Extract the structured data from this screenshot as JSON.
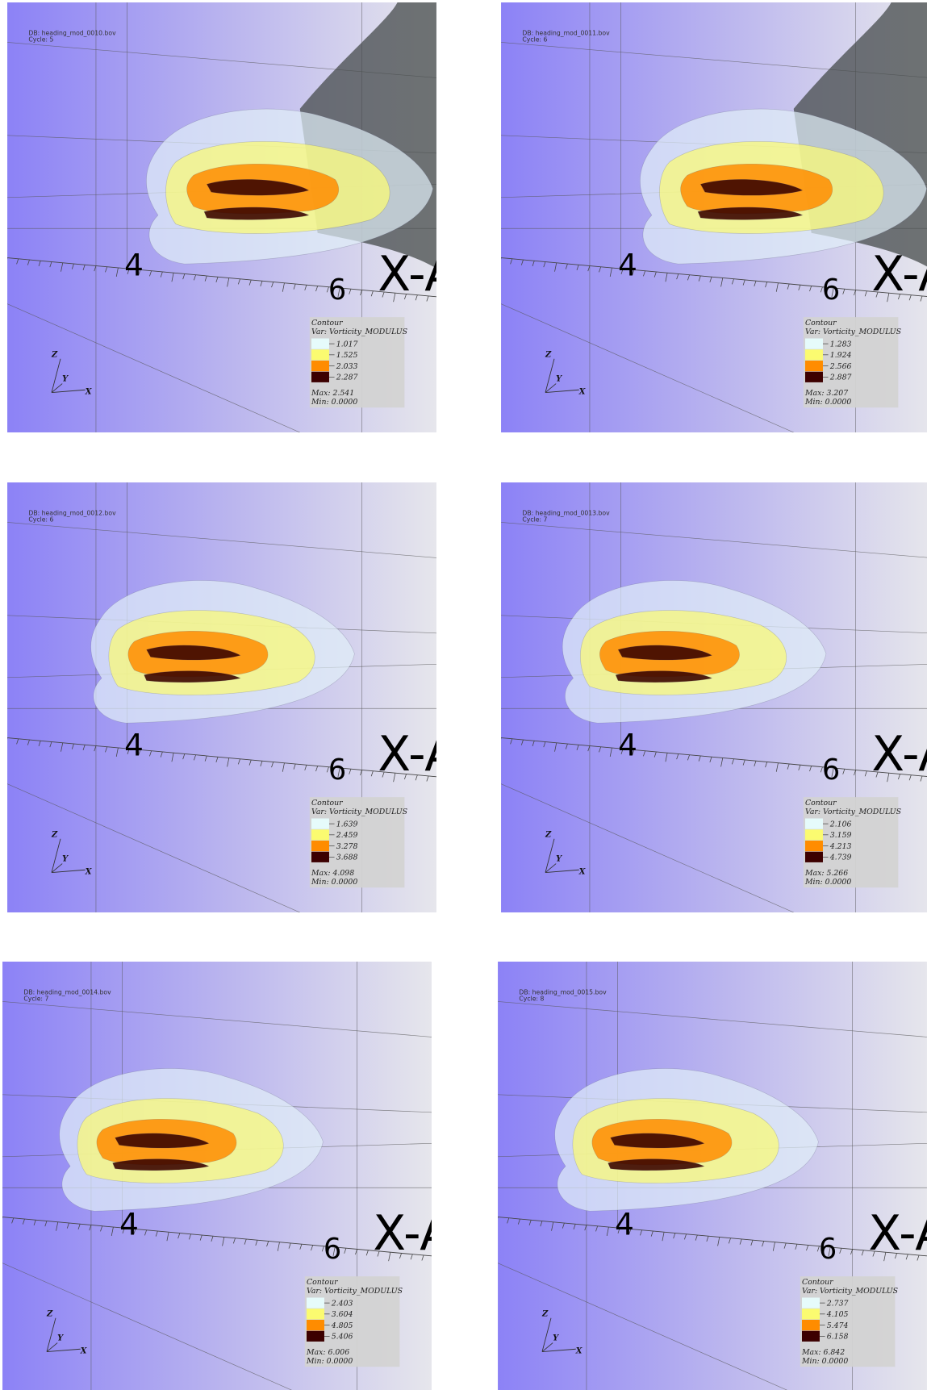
{
  "panels": [
    {
      "db": "DB: heading_mod_0010.bov",
      "cycle": "Cycle: 5",
      "axis": {
        "tick_a": "4",
        "tick_b": "6",
        "title": "X-Axis"
      },
      "triad": [
        "Z",
        "Y",
        "X"
      ],
      "legend": {
        "title": "Contour",
        "var": "Var: Vorticity_MODULUS",
        "levels": [
          "1.017",
          "1.525",
          "2.033",
          "2.287"
        ],
        "max": "Max:  2.541",
        "min": "Min:  0.0000"
      }
    },
    {
      "db": "DB: heading_mod_0011.bov",
      "cycle": "Cycle: 6",
      "axis": {
        "tick_a": "4",
        "tick_b": "6",
        "title": "X-Axis"
      },
      "triad": [
        "Z",
        "Y",
        "X"
      ],
      "legend": {
        "title": "Contour",
        "var": "Var: Vorticity_MODULUS",
        "levels": [
          "1.283",
          "1.924",
          "2.566",
          "2.887"
        ],
        "max": "Max:  3.207",
        "min": "Min:  0.0000"
      }
    },
    {
      "db": "DB: heading_mod_0012.bov",
      "cycle": "Cycle: 6",
      "axis": {
        "tick_a": "4",
        "tick_b": "6",
        "title": "X-Axis"
      },
      "triad": [
        "Z",
        "Y",
        "X"
      ],
      "legend": {
        "title": "Contour",
        "var": "Var: Vorticity_MODULUS",
        "levels": [
          "1.639",
          "2.459",
          "3.278",
          "3.688"
        ],
        "max": "Max:  4.098",
        "min": "Min:  0.0000"
      }
    },
    {
      "db": "DB: heading_mod_0013.bov",
      "cycle": "Cycle: 7",
      "axis": {
        "tick_a": "4",
        "tick_b": "6",
        "title": "X-Axis"
      },
      "triad": [
        "Z",
        "Y",
        "X"
      ],
      "legend": {
        "title": "Contour",
        "var": "Var: Vorticity_MODULUS",
        "levels": [
          "2.106",
          "3.159",
          "4.213",
          "4.739"
        ],
        "max": "Max:  5.266",
        "min": "Min:  0.0000"
      }
    },
    {
      "db": "DB: heading_mod_0014.bov",
      "cycle": "Cycle: 7",
      "axis": {
        "tick_a": "4",
        "tick_b": "6",
        "title": "X-Axis"
      },
      "triad": [
        "Z",
        "Y",
        "X"
      ],
      "legend": {
        "title": "Contour",
        "var": "Var: Vorticity_MODULUS",
        "levels": [
          "2.403",
          "3.604",
          "4.805",
          "5.406"
        ],
        "max": "Max:  6.006",
        "min": "Min:  0.0000"
      }
    },
    {
      "db": "DB: heading_mod_0015.bov",
      "cycle": "Cycle: 8",
      "axis": {
        "tick_a": "4",
        "tick_b": "6",
        "title": "X-Axis"
      },
      "triad": [
        "Z",
        "Y",
        "X"
      ],
      "legend": {
        "title": "Contour",
        "var": "Var: Vorticity_MODULUS",
        "levels": [
          "2.737",
          "4.105",
          "5.474",
          "6.158"
        ],
        "max": "Max:  6.842",
        "min": "Min:  0.0000"
      }
    }
  ]
}
